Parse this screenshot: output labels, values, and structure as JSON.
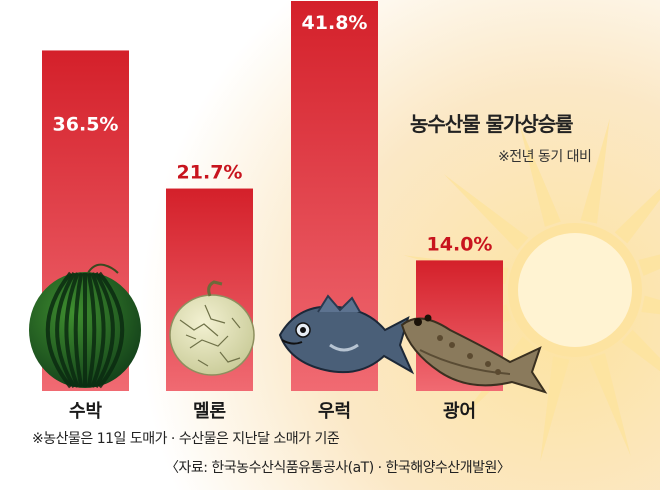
{
  "title": "농수산물 물가상승률",
  "subtitle": "※전년 동기 대비",
  "note": "※농산물은 11일 도매가 · 수산물은 지난달 소매가 기준",
  "source": "〈자료: 한국농수산식품유통공사(aT) · 한국해양수산개발원〉",
  "colors": {
    "bar_top": "#d4202a",
    "bar_bottom": "#f06a72",
    "value_text": "#c8141e",
    "sun": "#fde3a0",
    "background_glow": "#fbe4b8"
  },
  "chart_data": {
    "type": "bar",
    "categories": [
      "수박",
      "멜론",
      "우럭",
      "광어"
    ],
    "values": [
      36.5,
      21.7,
      41.8,
      14.0
    ],
    "value_labels": [
      "36.5%",
      "21.7%",
      "41.8%",
      "14.0%"
    ],
    "ylim": [
      0,
      41.8
    ],
    "grid": false,
    "legend": "none",
    "category_icons": [
      "watermelon-icon",
      "melon-icon",
      "rockfish-icon",
      "flatfish-icon"
    ]
  }
}
